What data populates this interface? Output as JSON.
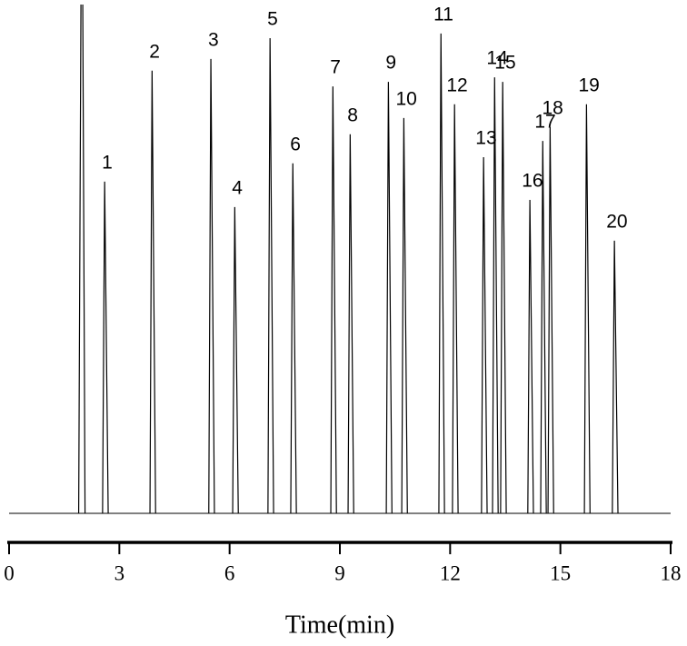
{
  "chart_data": {
    "type": "chromatogram",
    "x_label": "Time(min)",
    "x": [
      1.98,
      2.62,
      3.91,
      5.51,
      6.16,
      7.12,
      7.74,
      8.83,
      9.3,
      10.34,
      10.76,
      11.77,
      12.14,
      12.93,
      13.23,
      13.45,
      14.19,
      14.54,
      14.74,
      15.73,
      16.49
    ],
    "values": [
      100,
      65.2,
      87,
      89.3,
      60.2,
      93.4,
      68.8,
      83.9,
      74.5,
      84.8,
      77.7,
      94.3,
      80.4,
      70,
      85.7,
      84.8,
      61.6,
      73.2,
      75.9,
      80.4,
      53.6
    ],
    "labels": [
      null,
      "1",
      "2",
      "3",
      "4",
      "5",
      "6",
      "7",
      "8",
      "9",
      "10",
      "11",
      "12",
      "13",
      "14",
      "15",
      "16",
      "17",
      "18",
      "19",
      "20"
    ],
    "xlim": [
      0,
      18
    ],
    "xticks": [
      0,
      3,
      6,
      9,
      12,
      15,
      18
    ],
    "ylim": [
      0,
      100
    ],
    "color": "#000000"
  }
}
